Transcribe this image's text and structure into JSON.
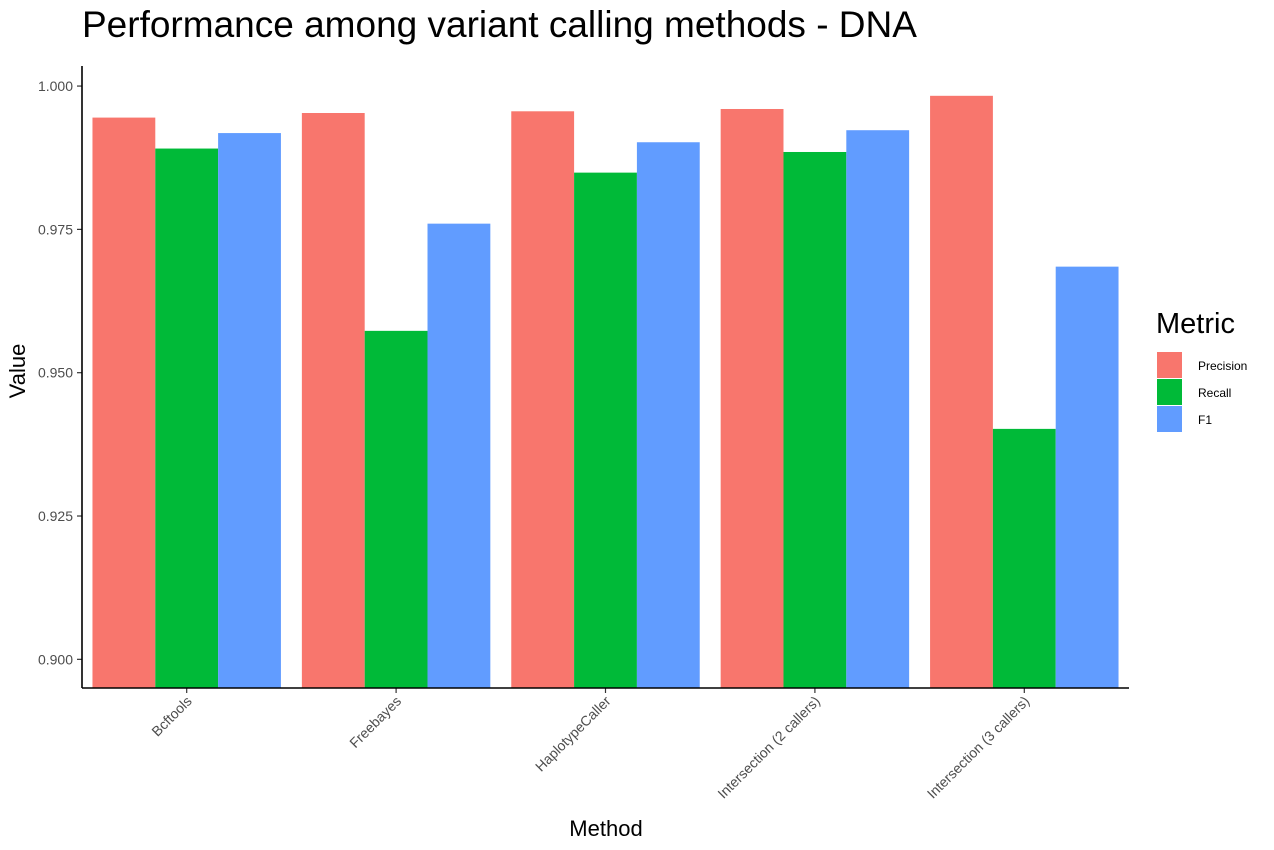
{
  "colors": {
    "Precision": "#F8766D",
    "Recall": "#00BA38",
    "F1": "#619CFF"
  },
  "chart_data": {
    "type": "bar",
    "title": "Performance among variant calling methods - DNA",
    "xlabel": "Method",
    "ylabel": "Value",
    "ylim": [
      0.895,
      1.0035
    ],
    "yticks": [
      "0.900",
      "0.925",
      "0.950",
      "0.975",
      "1.000"
    ],
    "ytick_values": [
      0.9,
      0.925,
      0.95,
      0.975,
      1.0
    ],
    "categories": [
      "Bcftools",
      "Freebayes",
      "HaplotypeCaller",
      "Intersection (2 callers)",
      "Intersection (3 callers)"
    ],
    "series": [
      {
        "name": "Precision",
        "values": [
          0.9945,
          0.9953,
          0.9956,
          0.996,
          0.9983
        ]
      },
      {
        "name": "Recall",
        "values": [
          0.9891,
          0.9573,
          0.9849,
          0.9885,
          0.9402
        ]
      },
      {
        "name": "F1",
        "values": [
          0.9918,
          0.976,
          0.9902,
          0.9923,
          0.9685
        ]
      }
    ],
    "grid": false,
    "legend": {
      "title": "Metric",
      "placement": "right",
      "entries": [
        "Precision",
        "Recall",
        "F1"
      ]
    }
  }
}
